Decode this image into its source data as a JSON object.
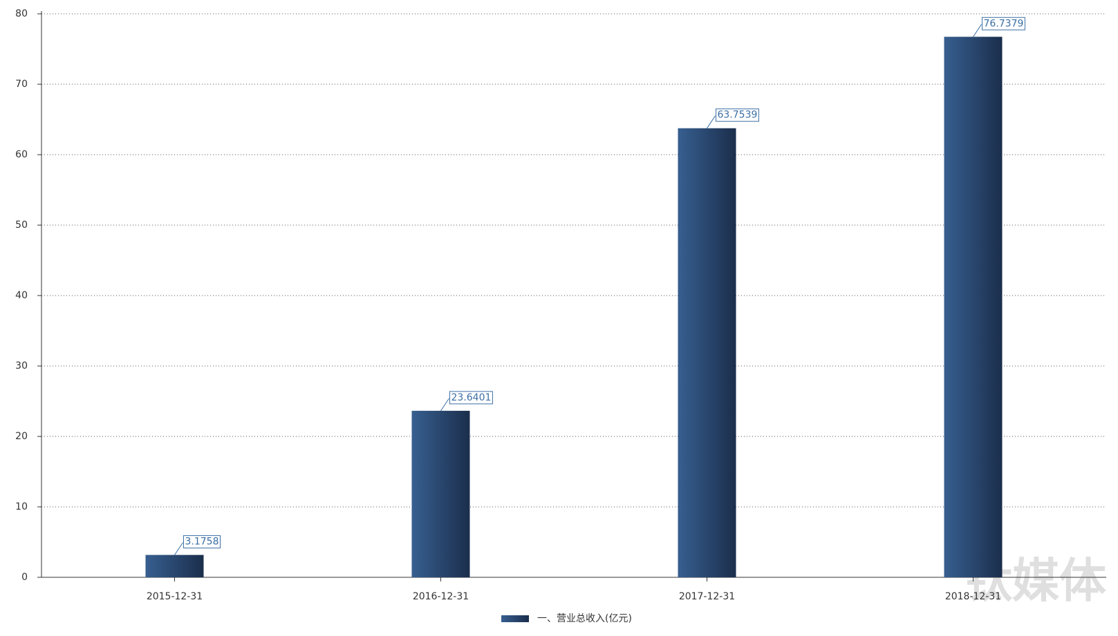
{
  "chart_data": {
    "type": "bar",
    "categories": [
      "2015-12-31",
      "2016-12-31",
      "2017-12-31",
      "2018-12-31"
    ],
    "series": [
      {
        "name": "一、营业总收入(亿元)",
        "color": "#2a4a75",
        "values": [
          3.1758,
          23.6401,
          63.7539,
          76.7379
        ]
      }
    ],
    "ylim": [
      0,
      80
    ],
    "yticks": [
      0,
      10,
      20,
      30,
      40,
      50,
      60,
      70,
      80
    ],
    "grid": true,
    "legend": "bottom",
    "watermark": "钛媒体"
  }
}
